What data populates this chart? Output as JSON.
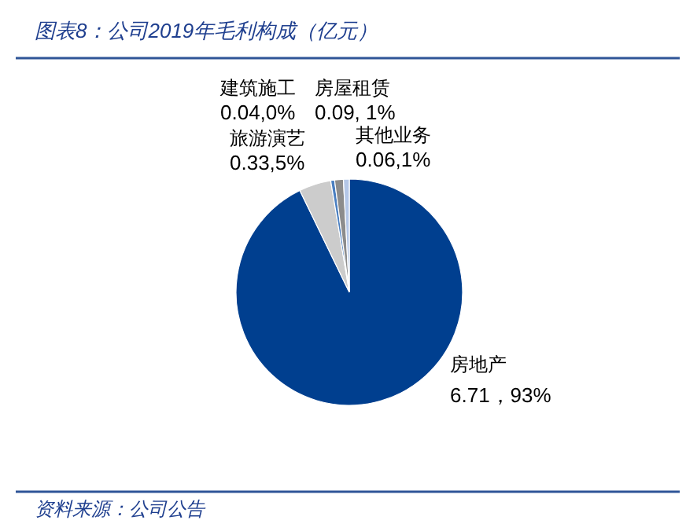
{
  "chart_data": {
    "type": "pie",
    "title": "图表8：公司2019年毛利构成（亿元）",
    "categories": [
      "房地产",
      "旅游演艺",
      "建筑施工",
      "房屋租赁",
      "其他业务"
    ],
    "values": [
      6.71,
      0.33,
      0.04,
      0.09,
      0.06
    ],
    "colors": [
      "#003f8f",
      "#cccccc",
      "#4a7fc1",
      "#8c8c8c",
      "#b4c7e7"
    ],
    "value_labels": [
      "6.71，93%",
      "0.33,5%",
      "0.04,0%",
      "0.09, 1%",
      "0.06,1%"
    ],
    "legend": false,
    "annotations": [
      "资料来源：公司公告"
    ]
  }
}
